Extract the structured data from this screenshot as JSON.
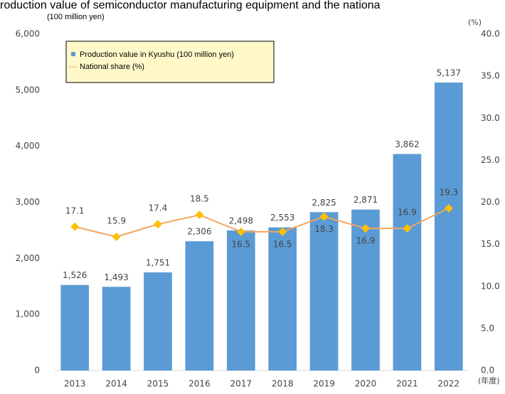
{
  "chart_data": {
    "type": "bar_line",
    "title": "roduction value of semiconductor manufacturing equipment and the nationa",
    "y_label": "(100 million yen)",
    "y2_label": "(%)",
    "x_label": "(年度)",
    "categories": [
      "2013",
      "2014",
      "2015",
      "2016",
      "2017",
      "2018",
      "2019",
      "2020",
      "2021",
      "2022"
    ],
    "series": [
      {
        "name": "Production value in Kyushu (100 million yen)",
        "type": "bar",
        "color": "#5b9bd5",
        "values": [
          1526,
          1493,
          1751,
          2306,
          2498,
          2553,
          2825,
          2871,
          3862,
          5137
        ],
        "value_labels": [
          "1,526",
          "1,493",
          "1,751",
          "2,306",
          "2,498",
          "2,553",
          "2,825",
          "2,871",
          "3,862",
          "5,137"
        ]
      },
      {
        "name": "National share (%)",
        "type": "line",
        "axis": "y2",
        "color": "#f4a460",
        "marker_color": "#ffc000",
        "values": [
          17.1,
          15.9,
          17.4,
          18.5,
          16.5,
          16.5,
          18.3,
          16.9,
          16.9,
          19.3
        ]
      }
    ],
    "ylim": [
      0,
      6000
    ],
    "yticks": [
      0,
      {
        "value": 1000,
        "label": "1,000"
      },
      {
        "value": 2000,
        "label": "2,000"
      },
      {
        "value": 3000,
        "label": "3,000"
      },
      {
        "value": 4000,
        "label": "4,000"
      },
      {
        "value": 5000,
        "label": "5,000"
      },
      {
        "value": 6000,
        "label": "6,000"
      }
    ],
    "y2lim": [
      0,
      40
    ],
    "y2ticks": [
      {
        "value": 0,
        "label": "0.0"
      },
      {
        "value": 5,
        "label": "5.0"
      },
      {
        "value": 10,
        "label": "10.0"
      },
      {
        "value": 15,
        "label": "15.0"
      },
      {
        "value": 20,
        "label": "20.0"
      },
      {
        "value": 25,
        "label": "25.0"
      },
      {
        "value": 30,
        "label": "30.0"
      },
      {
        "value": 35,
        "label": "35.0"
      },
      {
        "value": 40,
        "label": "40.0"
      }
    ],
    "grid": false
  }
}
